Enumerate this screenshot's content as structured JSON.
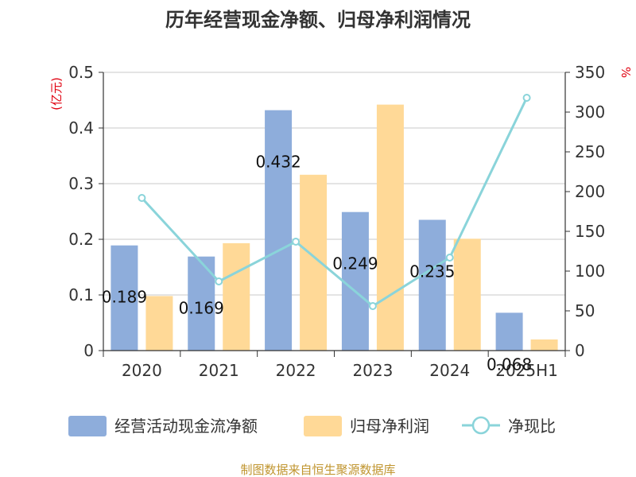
{
  "chart_data": {
    "type": "bar",
    "title": "历年经营现金净额、归母净利润情况",
    "categories": [
      "2020",
      "2021",
      "2022",
      "2023",
      "2024",
      "2025H1"
    ],
    "series": [
      {
        "name": "经营活动现金流净额",
        "type": "bar",
        "axis": "left",
        "color": "#8eaddb",
        "values": [
          0.189,
          0.169,
          0.432,
          0.249,
          0.235,
          0.068
        ],
        "labels": [
          "0.189",
          "0.169",
          "0.432",
          "0.249",
          "0.235",
          "0.068"
        ]
      },
      {
        "name": "归母净利润",
        "type": "bar",
        "axis": "left",
        "color": "#ffd997",
        "values": [
          0.098,
          0.193,
          0.316,
          0.442,
          0.201,
          0.02
        ]
      },
      {
        "name": "净现比",
        "type": "line",
        "axis": "right",
        "color": "#8ad4da",
        "values": [
          192,
          87,
          137,
          56,
          117,
          318
        ]
      }
    ],
    "y_left": {
      "unit": "(亿元)",
      "min": 0,
      "max": 0.5,
      "ticks": [
        "0",
        "0.1",
        "0.2",
        "0.3",
        "0.4",
        "0.5"
      ]
    },
    "y_right": {
      "unit": "%",
      "min": 0,
      "max": 350,
      "ticks": [
        "0",
        "50",
        "100",
        "150",
        "200",
        "250",
        "300",
        "350"
      ]
    },
    "grid": true,
    "legend_position": "bottom",
    "source": "制图数据来自恒生聚源数据库",
    "unit_color": "#e0000f",
    "source_color": "#c0952f"
  }
}
